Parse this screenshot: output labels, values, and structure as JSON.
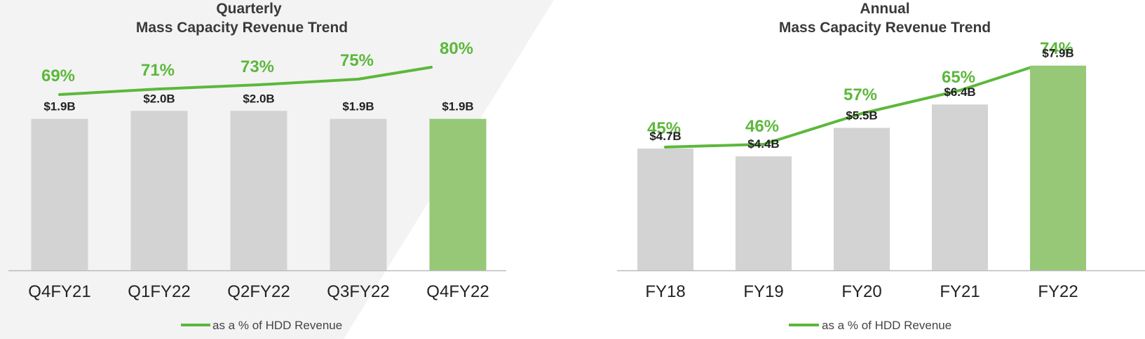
{
  "colors": {
    "bar": "#d3d3d3",
    "highlight_bar": "#96c878",
    "line": "#5cb83c",
    "pct_text": "#5cb83c",
    "axis": "#bbbbbb",
    "panel_bg": "#f3f3f3"
  },
  "chart_data": [
    {
      "type": "bar",
      "title_line1": "Quarterly",
      "title_line2": "Mass Capacity Revenue Trend",
      "categories": [
        "Q4FY21",
        "Q1FY22",
        "Q2FY22",
        "Q3FY22",
        "Q4FY22"
      ],
      "values": [
        1.9,
        2.0,
        2.0,
        1.9,
        1.9
      ],
      "value_labels": [
        "$1.9B",
        "$2.0B",
        "$2.0B",
        "$1.9B",
        "$1.9B"
      ],
      "highlight_index": 4,
      "ylim": [
        0,
        2.6
      ],
      "line_series": {
        "name": "as a % of HDD Revenue",
        "values": [
          69,
          71,
          73,
          75,
          80
        ],
        "labels": [
          "69%",
          "71%",
          "73%",
          "75%",
          "80%"
        ]
      },
      "legend": "bottom-center"
    },
    {
      "type": "bar",
      "title_line1": "Annual",
      "title_line2": "Mass Capacity Revenue Trend",
      "categories": [
        "FY18",
        "FY19",
        "FY20",
        "FY21",
        "FY22"
      ],
      "values": [
        4.7,
        4.4,
        5.5,
        6.4,
        7.9
      ],
      "value_labels": [
        "$4.7B",
        "$4.4B",
        "$5.5B",
        "$6.4B",
        "$7.9B"
      ],
      "highlight_index": 4,
      "ylim": [
        0,
        8.0
      ],
      "line_series": {
        "name": "as a % of HDD Revenue",
        "values": [
          45,
          46,
          57,
          65,
          74
        ],
        "labels": [
          "45%",
          "46%",
          "57%",
          "65%",
          "74%"
        ]
      },
      "legend": "bottom-center"
    }
  ]
}
